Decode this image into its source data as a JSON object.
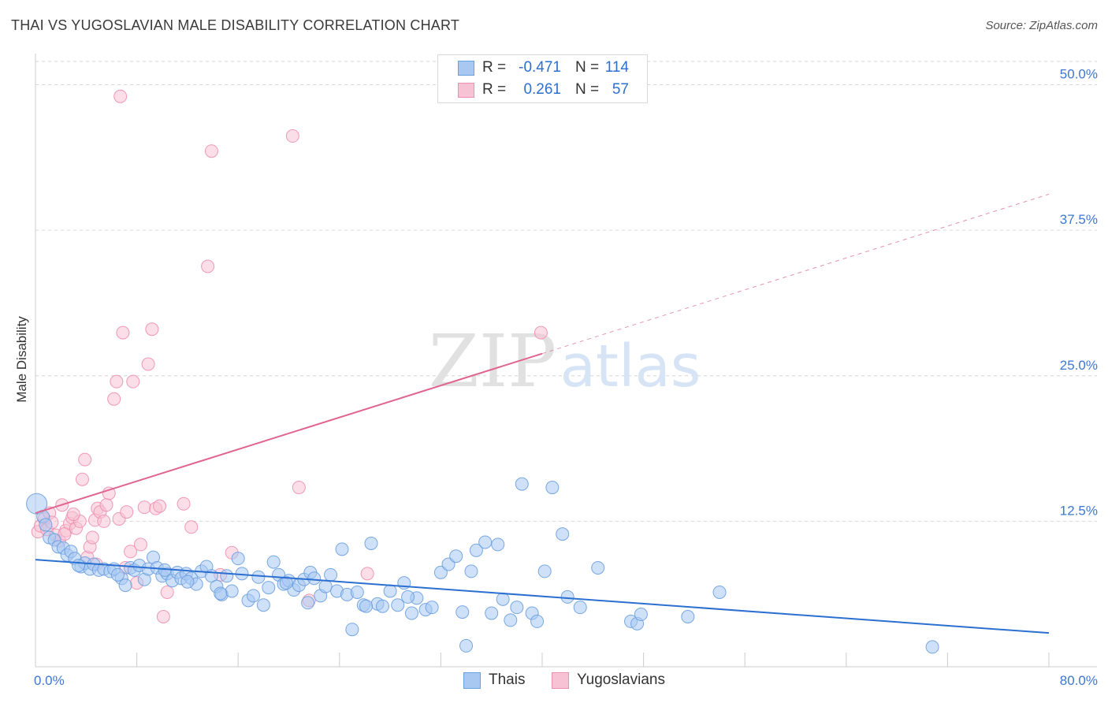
{
  "header": {
    "title": "THAI VS YUGOSLAVIAN MALE DISABILITY CORRELATION CHART",
    "source": "Source: ZipAtlas.com"
  },
  "watermark": {
    "zip": "ZIP",
    "atlas": "atlas"
  },
  "legend": {
    "rows": [
      {
        "r_label": "R =",
        "r_value": "-0.471",
        "n_label": "N =",
        "n_value": "114",
        "color": "#8fb8ee"
      },
      {
        "r_label": "R =",
        "r_value": "0.261",
        "n_label": "N =",
        "n_value": "57",
        "color": "#f3a9c0"
      }
    ]
  },
  "bottom_legend": {
    "thai": "Thais",
    "yugo": "Yugoslavians"
  },
  "colors": {
    "thai_stroke": "#6a9fe0",
    "thai_fill": "#a8c8f2",
    "yugo_stroke": "#ee8faf",
    "yugo_fill": "#f7c2d3",
    "thai_line": "#2c6fd0",
    "yugo_line": "#e0648d",
    "tick_text": "#3d78d0",
    "grid": "#d6d6d6"
  },
  "chart_data": {
    "type": "scatter",
    "title": "THAI VS YUGOSLAVIAN MALE DISABILITY CORRELATION CHART",
    "xlabel": "",
    "ylabel": "Male Disability",
    "xlim": [
      0,
      80
    ],
    "ylim": [
      0,
      52
    ],
    "x_tick_labels": [
      "0.0%",
      "80.0%"
    ],
    "y_ticks": [
      12.5,
      25.0,
      37.5,
      50.0
    ],
    "y_tick_labels": [
      "12.5%",
      "25.0%",
      "37.5%",
      "50.0%"
    ],
    "grid": "horizontal dashed",
    "legend_position": "top-center",
    "series": [
      {
        "name": "Thais",
        "trend": {
          "x0": 0,
          "y0": 9.2,
          "x1": 80,
          "y1": 2.9
        },
        "points": [
          [
            0.1,
            14.0
          ],
          [
            0.6,
            12.9
          ],
          [
            0.8,
            12.2
          ],
          [
            1.1,
            11.1
          ],
          [
            1.5,
            10.9
          ],
          [
            1.8,
            10.3
          ],
          [
            2.2,
            10.2
          ],
          [
            2.5,
            9.6
          ],
          [
            2.8,
            9.9
          ],
          [
            3.1,
            9.3
          ],
          [
            3.6,
            8.6
          ],
          [
            3.9,
            8.9
          ],
          [
            4.3,
            8.4
          ],
          [
            4.6,
            8.8
          ],
          [
            5.0,
            8.3
          ],
          [
            5.4,
            8.4
          ],
          [
            5.9,
            8.2
          ],
          [
            6.2,
            8.4
          ],
          [
            6.8,
            7.6
          ],
          [
            7.1,
            7.0
          ],
          [
            7.5,
            8.5
          ],
          [
            7.8,
            8.3
          ],
          [
            8.2,
            8.7
          ],
          [
            8.6,
            7.5
          ],
          [
            8.9,
            8.4
          ],
          [
            9.3,
            9.4
          ],
          [
            9.6,
            8.5
          ],
          [
            10.0,
            7.8
          ],
          [
            10.4,
            8.0
          ],
          [
            10.8,
            7.4
          ],
          [
            11.2,
            8.1
          ],
          [
            11.5,
            7.6
          ],
          [
            11.9,
            8.0
          ],
          [
            12.3,
            7.6
          ],
          [
            12.7,
            7.1
          ],
          [
            13.1,
            8.2
          ],
          [
            13.5,
            8.6
          ],
          [
            13.9,
            7.8
          ],
          [
            14.3,
            6.9
          ],
          [
            14.7,
            6.2
          ],
          [
            15.1,
            7.8
          ],
          [
            15.5,
            6.5
          ],
          [
            16.0,
            9.3
          ],
          [
            16.3,
            8.0
          ],
          [
            16.8,
            5.7
          ],
          [
            17.2,
            6.1
          ],
          [
            17.6,
            7.7
          ],
          [
            18.0,
            5.3
          ],
          [
            18.4,
            6.8
          ],
          [
            18.8,
            9.0
          ],
          [
            19.2,
            7.9
          ],
          [
            19.6,
            7.1
          ],
          [
            20.0,
            7.4
          ],
          [
            20.4,
            6.6
          ],
          [
            20.8,
            7.0
          ],
          [
            21.2,
            7.5
          ],
          [
            21.7,
            8.1
          ],
          [
            22.0,
            7.6
          ],
          [
            22.5,
            6.1
          ],
          [
            22.9,
            6.9
          ],
          [
            23.3,
            7.9
          ],
          [
            23.8,
            6.5
          ],
          [
            24.2,
            10.1
          ],
          [
            24.6,
            6.2
          ],
          [
            25.0,
            3.2
          ],
          [
            25.4,
            6.4
          ],
          [
            25.9,
            5.3
          ],
          [
            26.5,
            10.6
          ],
          [
            27.0,
            5.4
          ],
          [
            27.4,
            5.2
          ],
          [
            28.0,
            6.5
          ],
          [
            28.6,
            5.3
          ],
          [
            29.1,
            7.2
          ],
          [
            29.7,
            4.6
          ],
          [
            30.1,
            5.9
          ],
          [
            30.8,
            4.9
          ],
          [
            31.3,
            5.1
          ],
          [
            32.0,
            8.1
          ],
          [
            32.6,
            8.8
          ],
          [
            33.2,
            9.5
          ],
          [
            33.7,
            4.7
          ],
          [
            34.0,
            1.8
          ],
          [
            34.4,
            8.2
          ],
          [
            34.8,
            10.0
          ],
          [
            35.5,
            10.7
          ],
          [
            36.0,
            4.6
          ],
          [
            36.9,
            5.8
          ],
          [
            37.5,
            4.0
          ],
          [
            38.0,
            5.1
          ],
          [
            38.4,
            15.7
          ],
          [
            39.2,
            4.6
          ],
          [
            39.6,
            3.9
          ],
          [
            40.2,
            8.2
          ],
          [
            40.8,
            15.4
          ],
          [
            41.6,
            11.4
          ],
          [
            43.0,
            5.1
          ],
          [
            44.4,
            8.5
          ],
          [
            47.0,
            3.9
          ],
          [
            47.5,
            3.7
          ],
          [
            47.8,
            4.5
          ],
          [
            51.5,
            4.3
          ],
          [
            54.0,
            6.4
          ],
          [
            70.8,
            1.7
          ],
          [
            12.0,
            7.3
          ],
          [
            19.8,
            7.2
          ],
          [
            3.4,
            8.7
          ],
          [
            6.5,
            7.9
          ],
          [
            10.2,
            8.3
          ],
          [
            26.1,
            5.2
          ],
          [
            36.5,
            10.5
          ],
          [
            42.0,
            6.0
          ],
          [
            14.6,
            6.3
          ],
          [
            21.5,
            5.5
          ],
          [
            29.4,
            6.0
          ]
        ]
      },
      {
        "name": "Yugoslavians",
        "trend": {
          "x0": 0,
          "y0": 13.2,
          "x1": 40,
          "y1": 26.9,
          "dash_to_x": 80,
          "dash_to_y": 40.6
        },
        "points": [
          [
            0.2,
            11.6
          ],
          [
            0.4,
            12.1
          ],
          [
            0.7,
            12.7
          ],
          [
            0.9,
            11.8
          ],
          [
            1.1,
            13.2
          ],
          [
            1.3,
            12.4
          ],
          [
            1.6,
            11.3
          ],
          [
            1.9,
            10.8
          ],
          [
            2.1,
            13.9
          ],
          [
            2.4,
            11.7
          ],
          [
            2.7,
            12.3
          ],
          [
            2.9,
            12.8
          ],
          [
            3.2,
            11.9
          ],
          [
            3.5,
            12.5
          ],
          [
            3.7,
            16.1
          ],
          [
            3.9,
            17.8
          ],
          [
            4.1,
            9.4
          ],
          [
            4.3,
            10.3
          ],
          [
            4.5,
            11.1
          ],
          [
            4.7,
            12.6
          ],
          [
            4.9,
            13.6
          ],
          [
            5.1,
            13.3
          ],
          [
            5.4,
            12.5
          ],
          [
            5.8,
            14.9
          ],
          [
            6.2,
            23.0
          ],
          [
            6.4,
            24.5
          ],
          [
            6.6,
            12.7
          ],
          [
            6.9,
            28.7
          ],
          [
            7.2,
            13.3
          ],
          [
            7.5,
            9.9
          ],
          [
            7.7,
            24.5
          ],
          [
            8.0,
            7.2
          ],
          [
            8.3,
            10.5
          ],
          [
            8.6,
            13.7
          ],
          [
            8.9,
            26.0
          ],
          [
            9.2,
            29.0
          ],
          [
            9.5,
            13.6
          ],
          [
            9.8,
            13.8
          ],
          [
            10.1,
            4.3
          ],
          [
            10.4,
            6.4
          ],
          [
            11.7,
            14.0
          ],
          [
            12.3,
            12.0
          ],
          [
            13.6,
            34.4
          ],
          [
            13.9,
            44.3
          ],
          [
            14.6,
            7.9
          ],
          [
            15.5,
            9.8
          ],
          [
            20.3,
            45.6
          ],
          [
            20.8,
            15.4
          ],
          [
            21.6,
            5.7
          ],
          [
            26.2,
            8.0
          ],
          [
            39.9,
            28.7
          ],
          [
            6.7,
            49.0
          ],
          [
            2.3,
            11.4
          ],
          [
            4.8,
            8.8
          ],
          [
            7.1,
            8.5
          ],
          [
            3.0,
            13.1
          ],
          [
            5.6,
            13.9
          ]
        ]
      }
    ]
  }
}
